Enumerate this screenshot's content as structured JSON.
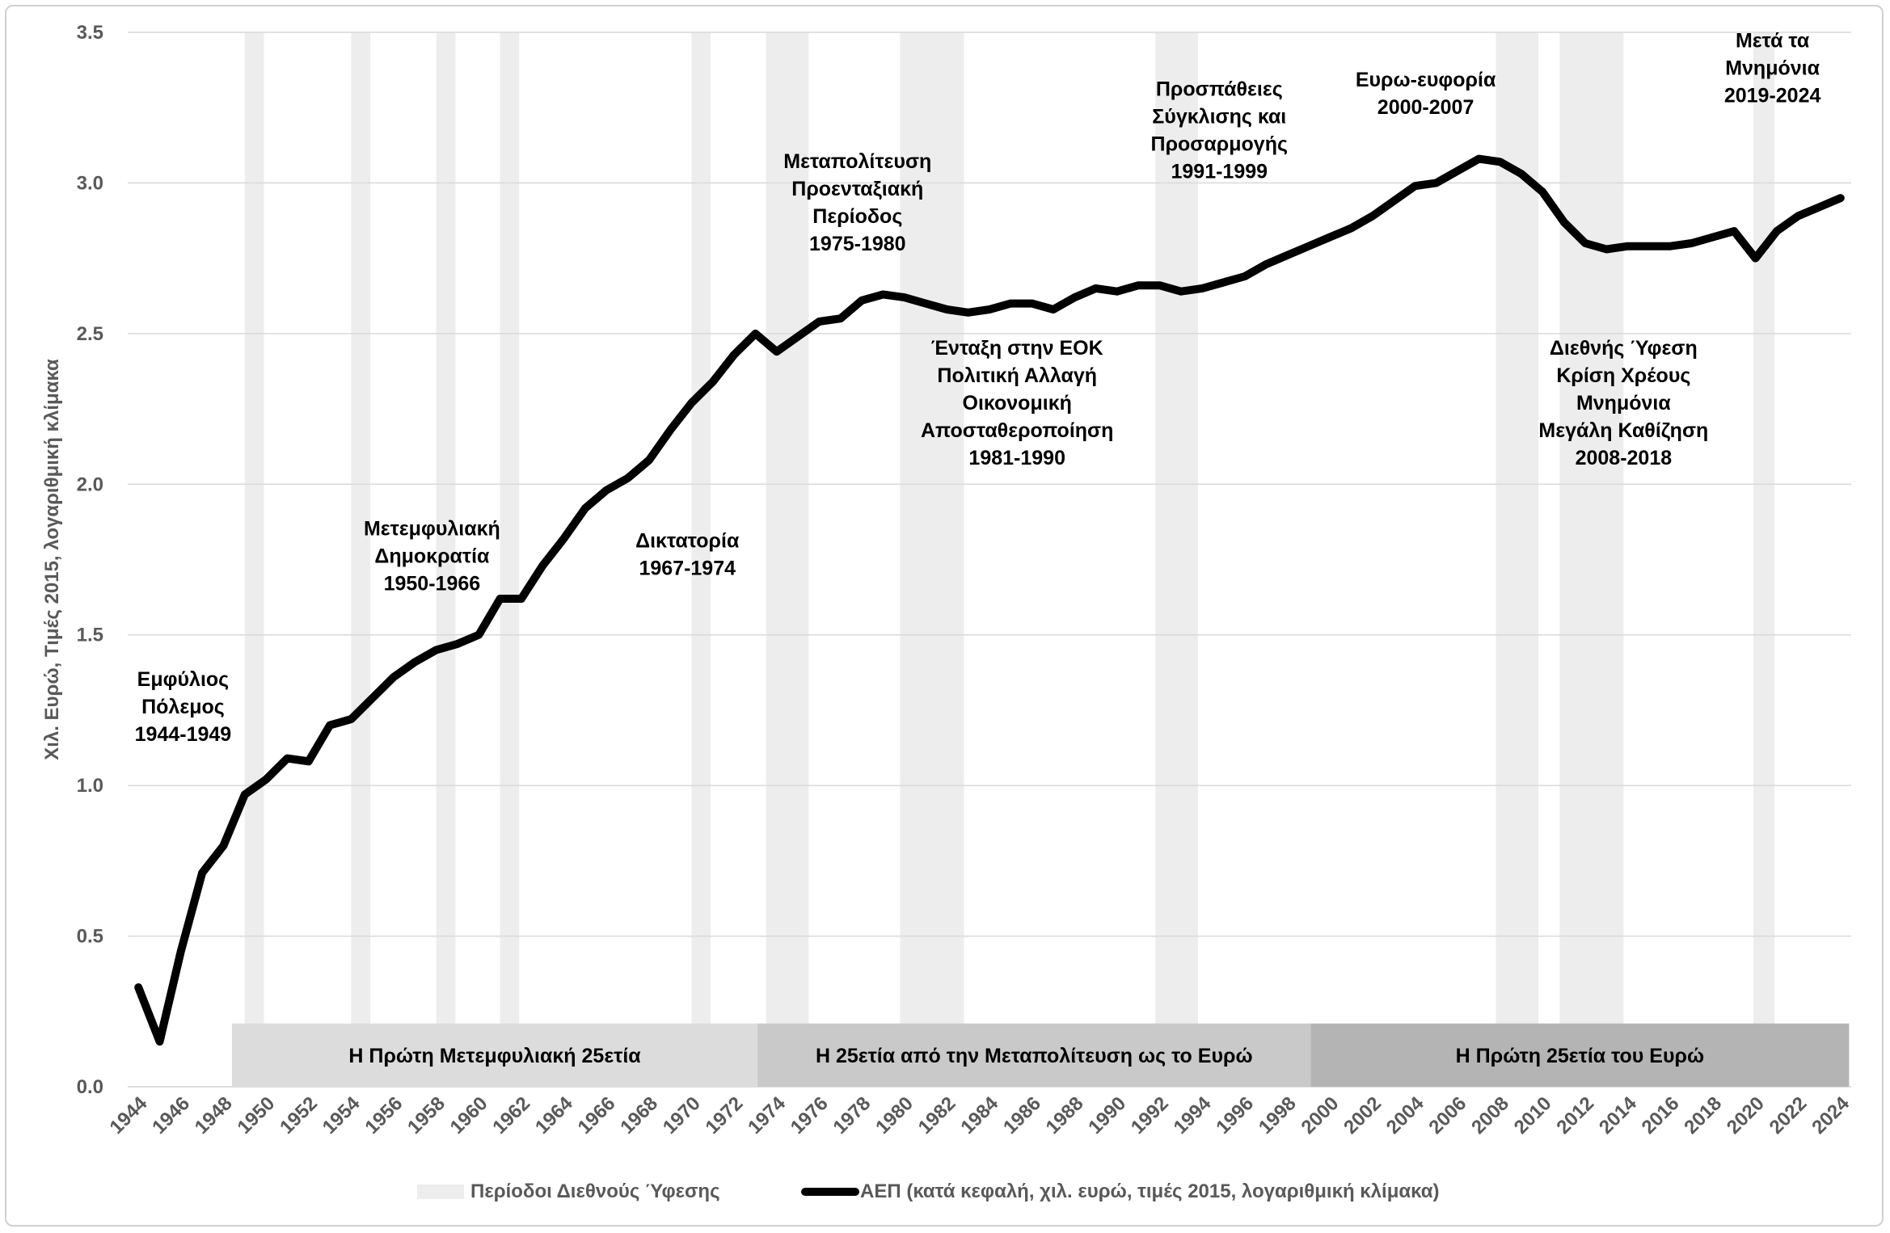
{
  "chart_data": {
    "type": "line",
    "ylabel": "Χιλ. Ευρώ, Τιμές 2015, λογαριθμική κλίμακα",
    "ylim": [
      0.0,
      3.5
    ],
    "yticks": [
      "0.0",
      "0.5",
      "1.0",
      "1.5",
      "2.0",
      "2.5",
      "3.0",
      "3.5"
    ],
    "xlim": [
      1944,
      2024
    ],
    "xticks": [
      "1944",
      "1946",
      "1948",
      "1950",
      "1952",
      "1954",
      "1956",
      "1958",
      "1960",
      "1962",
      "1964",
      "1966",
      "1968",
      "1970",
      "1972",
      "1974",
      "1976",
      "1978",
      "1980",
      "1982",
      "1984",
      "1986",
      "1988",
      "1990",
      "1992",
      "1994",
      "1996",
      "1998",
      "2000",
      "2002",
      "2004",
      "2006",
      "2008",
      "2010",
      "2012",
      "2014",
      "2016",
      "2018",
      "2020",
      "2022",
      "2024"
    ],
    "series": [
      {
        "name": "ΑΕΠ (κατά κεφαλή, χιλ. ευρώ, τιμές 2015, λογαριθμική κλίμακα)",
        "x": [
          1944,
          1945,
          1946,
          1947,
          1948,
          1949,
          1950,
          1951,
          1952,
          1953,
          1954,
          1955,
          1956,
          1957,
          1958,
          1959,
          1960,
          1961,
          1962,
          1963,
          1964,
          1965,
          1966,
          1967,
          1968,
          1969,
          1970,
          1971,
          1972,
          1973,
          1974,
          1975,
          1976,
          1977,
          1978,
          1979,
          1980,
          1981,
          1982,
          1983,
          1984,
          1985,
          1986,
          1987,
          1988,
          1989,
          1990,
          1991,
          1992,
          1993,
          1994,
          1995,
          1996,
          1997,
          1998,
          1999,
          2000,
          2001,
          2002,
          2003,
          2004,
          2005,
          2006,
          2007,
          2008,
          2009,
          2010,
          2011,
          2012,
          2013,
          2014,
          2015,
          2016,
          2017,
          2018,
          2019,
          2020,
          2021,
          2022,
          2023,
          2024
        ],
        "values": [
          0.33,
          0.15,
          0.45,
          0.71,
          0.8,
          0.97,
          1.02,
          1.09,
          1.08,
          1.2,
          1.22,
          1.29,
          1.36,
          1.41,
          1.45,
          1.47,
          1.5,
          1.62,
          1.62,
          1.73,
          1.82,
          1.92,
          1.98,
          2.02,
          2.08,
          2.18,
          2.27,
          2.34,
          2.43,
          2.5,
          2.44,
          2.49,
          2.54,
          2.55,
          2.61,
          2.63,
          2.62,
          2.6,
          2.58,
          2.57,
          2.58,
          2.6,
          2.6,
          2.58,
          2.62,
          2.65,
          2.64,
          2.66,
          2.66,
          2.64,
          2.65,
          2.67,
          2.69,
          2.73,
          2.76,
          2.79,
          2.82,
          2.85,
          2.89,
          2.94,
          2.99,
          3.0,
          3.04,
          3.08,
          3.07,
          3.03,
          2.97,
          2.87,
          2.8,
          2.78,
          2.79,
          2.79,
          2.79,
          2.8,
          2.82,
          2.84,
          2.75,
          2.84,
          2.89,
          2.92,
          2.95
        ]
      }
    ],
    "recession_periods": [
      [
        1949,
        1949.9
      ],
      [
        1954,
        1954.9
      ],
      [
        1958,
        1958.9
      ],
      [
        1961,
        1961.9
      ],
      [
        1970,
        1970.9
      ],
      [
        1973.5,
        1975.5
      ],
      [
        1979.8,
        1982.8
      ],
      [
        1991.8,
        1993.8
      ],
      [
        2007.8,
        2009.8
      ],
      [
        2010.8,
        2013.8
      ],
      [
        2019.9,
        2020.9
      ]
    ],
    "annotations": [
      {
        "lines": [
          "Εμφύλιος",
          "Πόλεμος",
          "1944-1949"
        ],
        "x": 1946.1,
        "y": 1.33
      },
      {
        "lines": [
          "Μετεμφυλιακή",
          "Δημοκρατία",
          "1950-1966"
        ],
        "x": 1957.8,
        "y": 1.83
      },
      {
        "lines": [
          "Δικτατορία",
          "1967-1974"
        ],
        "x": 1969.8,
        "y": 1.79
      },
      {
        "lines": [
          "Μεταπολίτευση",
          "Προενταξιακή",
          "Περίοδος",
          "1975-1980"
        ],
        "x": 1977.8,
        "y": 3.05
      },
      {
        "lines": [
          "Ένταξη στην ΕΟΚ",
          "Πολιτική Αλλαγή",
          "Οικονομική",
          "Αποσταθεροποίηση",
          "1981-1990"
        ],
        "x": 1985.3,
        "y": 2.43
      },
      {
        "lines": [
          "Προσπάθειες",
          "Σύγκλισης και",
          "Προσαρμογής",
          "1991-1999"
        ],
        "x": 1994.8,
        "y": 3.29
      },
      {
        "lines": [
          "Ευρω-ευφορία",
          "2000-2007"
        ],
        "x": 2004.5,
        "y": 3.32
      },
      {
        "lines": [
          "Διεθνής Ύφεση",
          "Κρίση Χρέους",
          "Μνημόνια",
          "Μεγάλη Καθίζηση",
          "2008-2018"
        ],
        "x": 2013.8,
        "y": 2.43
      },
      {
        "lines": [
          "Μετά τα",
          "Μνημόνια",
          "2019-2024"
        ],
        "x": 2020.8,
        "y": 3.45
      }
    ],
    "eras": [
      {
        "label": "Η Πρώτη Μετεμφυλιακή 25ετία",
        "from": 1948.4,
        "to": 1973.1
      },
      {
        "label": "Η 25ετία από την Μεταπολίτευση ως το Ευρώ",
        "from": 1973.1,
        "to": 1999.1
      },
      {
        "label": "Η Πρώτη 25ετία του Ευρώ",
        "from": 1999.1,
        "to": 2024.4
      }
    ],
    "era_y": [
      0.0,
      0.21
    ],
    "legend": [
      {
        "label": "Περίοδοι Διεθνούς Ύφεσης",
        "type": "recession"
      },
      {
        "label": "ΑΕΠ (κατά κεφαλή, χιλ. ευρώ, τιμές 2015, λογαριθμική κλίμακα)",
        "type": "line"
      }
    ],
    "colors": {
      "line": "#000000",
      "recession": "#ededed",
      "era_fills": [
        "#dcdcdc",
        "#c9c9c9",
        "#b4b4b4"
      ],
      "grid": "#d9d9d9",
      "tick": "#595959"
    }
  }
}
